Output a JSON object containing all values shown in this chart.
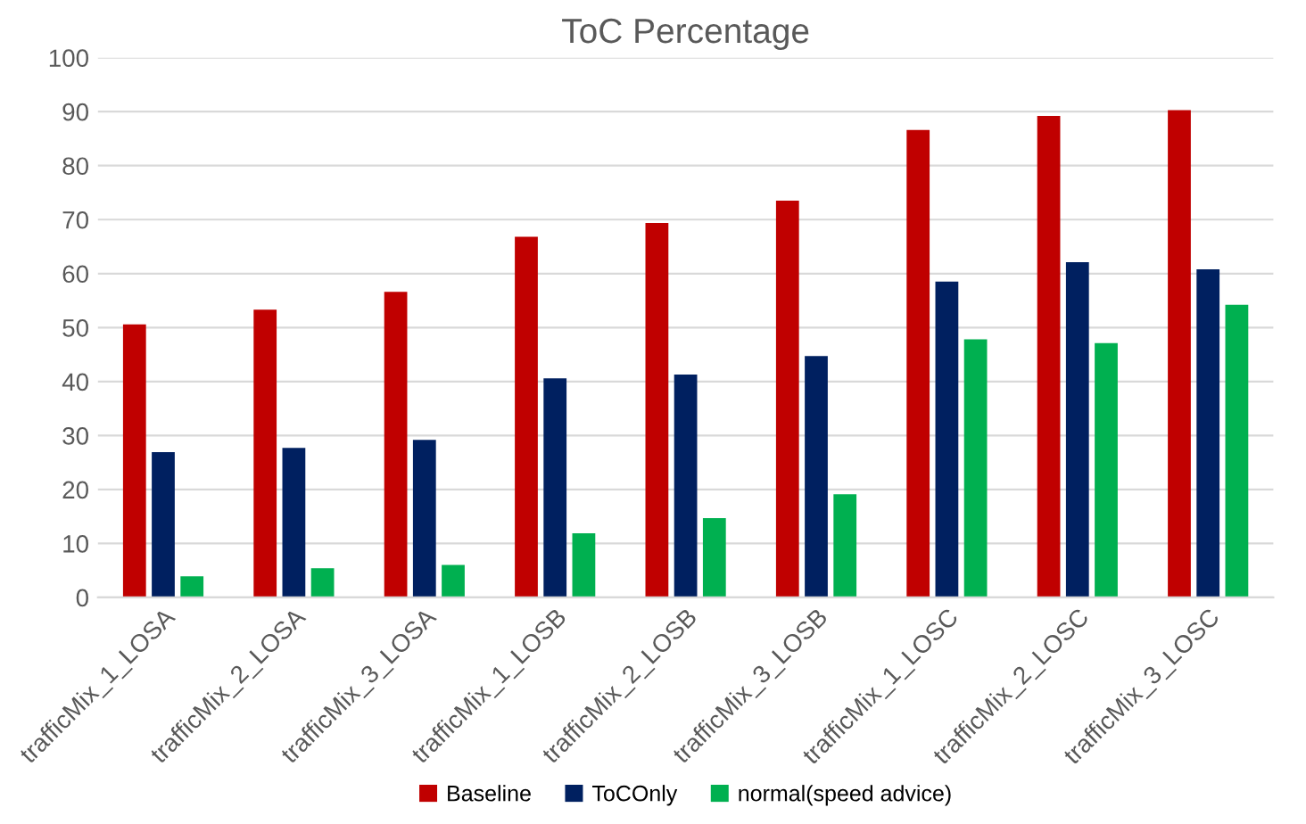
{
  "chart_data": {
    "type": "bar",
    "title": "ToC Percentage",
    "categories": [
      "trafficMix_1_LOSA",
      "trafficMix_2_LOSA",
      "trafficMix_3_LOSA",
      "trafficMix_1_LOSB",
      "trafficMix_2_LOSB",
      "trafficMix_3_LOSB",
      "trafficMix_1_LOSC",
      "trafficMix_2_LOSC",
      "trafficMix_3_LOSC"
    ],
    "series": [
      {
        "name": "Baseline",
        "color": "#c00000",
        "values": [
          50.6,
          53.3,
          56.6,
          66.8,
          69.4,
          73.5,
          86.6,
          89.2,
          90.3
        ]
      },
      {
        "name": "ToCOnly",
        "color": "#002060",
        "values": [
          26.9,
          27.7,
          29.2,
          40.6,
          41.3,
          44.7,
          58.5,
          62.1,
          60.8
        ]
      },
      {
        "name": "normal(speed advice)",
        "color": "#00b050",
        "values": [
          3.9,
          5.4,
          6.0,
          11.9,
          14.7,
          19.1,
          47.8,
          47.1,
          54.2
        ]
      }
    ],
    "ylim": [
      0,
      100
    ],
    "yticks": [
      0,
      10,
      20,
      30,
      40,
      50,
      60,
      70,
      80,
      90,
      100
    ],
    "grid": "y",
    "legend": "bottom"
  }
}
